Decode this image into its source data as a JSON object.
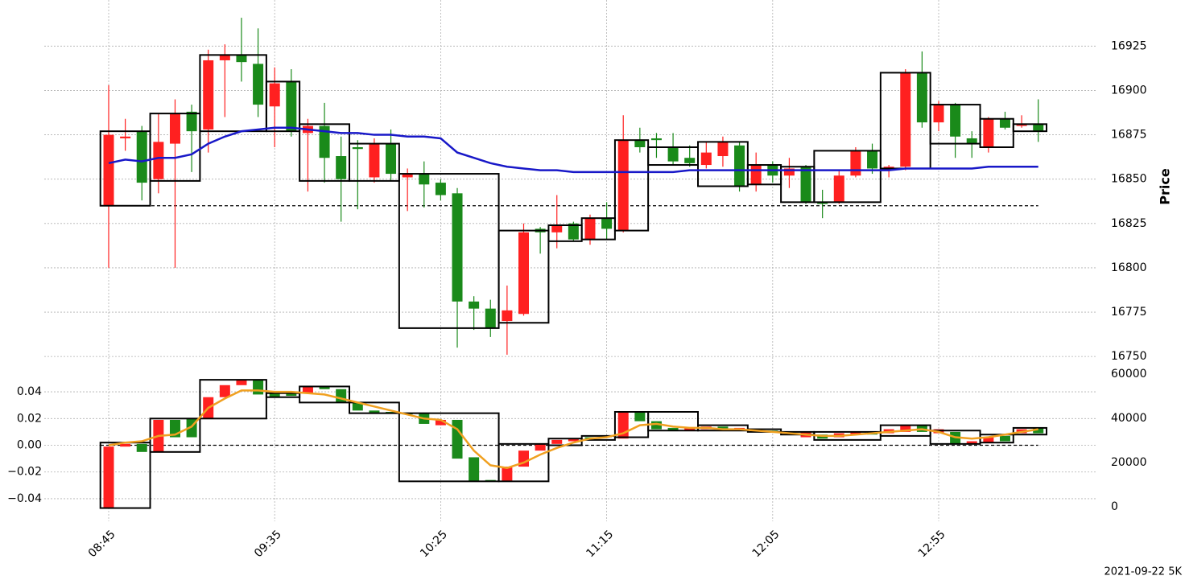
{
  "chart_data": [
    {
      "type": "candlestick",
      "ylabel": "Price",
      "y_axis_side": "right",
      "grid": true,
      "up_color": "#1a8a1a",
      "down_color": "#ff2020",
      "ylim": [
        16741,
        16951
      ],
      "yticks": [
        16750,
        16775,
        16800,
        16825,
        16850,
        16875,
        16900,
        16925
      ],
      "open": [
        16875,
        16874,
        16848,
        16871,
        16887,
        16877,
        16917,
        16920,
        16916,
        16892,
        16904,
        16877,
        16880,
        16862,
        16850,
        16867,
        16870,
        16853,
        16853,
        16847,
        16841,
        16781,
        16777,
        16766,
        16776,
        16820,
        16820,
        16824,
        16816,
        16828,
        16822,
        16872,
        16868,
        16872,
        16860,
        16859,
        16865,
        16871,
        16846,
        16858,
        16852,
        16856,
        16837,
        16836,
        16852,
        16866,
        16856,
        16857,
        16910,
        16882,
        16892,
        16874,
        16870,
        16884,
        16879,
        16881,
        16877
      ],
      "high": [
        16903,
        16884,
        16880,
        16887,
        16895,
        16892,
        16923,
        16926,
        16941,
        16935,
        16913,
        16912,
        16884,
        16893,
        16874,
        16872,
        16873,
        16878,
        16856,
        16860,
        16850,
        16845,
        16784,
        16782,
        16790,
        16825,
        16823,
        16841,
        16826,
        16830,
        16837,
        16886,
        16879,
        16876,
        16876,
        16869,
        16871,
        16874,
        16871,
        16865,
        16860,
        16862,
        16858,
        16844,
        16855,
        16868,
        16870,
        16858,
        16912,
        16922,
        16894,
        16893,
        16877,
        16885,
        16888,
        16886,
        16895
      ],
      "low": [
        16800,
        16866,
        16838,
        16842,
        16800,
        16854,
        16865,
        16885,
        16905,
        16885,
        16868,
        16874,
        16843,
        16848,
        16826,
        16833,
        16848,
        16849,
        16832,
        16834,
        16838,
        16755,
        16765,
        16761,
        16751,
        16773,
        16808,
        16811,
        16815,
        16813,
        16816,
        16820,
        16865,
        16862,
        16858,
        16857,
        16856,
        16857,
        16843,
        16843,
        16848,
        16845,
        16836,
        16828,
        16836,
        16851,
        16853,
        16851,
        16855,
        16879,
        16877,
        16862,
        16862,
        16865,
        16878,
        16879,
        16871
      ],
      "close": [
        16835,
        16873,
        16877,
        16850,
        16870,
        16888,
        16878,
        16917,
        16920,
        16915,
        16891,
        16905,
        16876,
        16880,
        16863,
        16868,
        16851,
        16870,
        16851,
        16853,
        16848,
        16842,
        16781,
        16777,
        16770,
        16774,
        16822,
        16820,
        16825,
        16816,
        16828,
        16821,
        16872,
        16873,
        16868,
        16862,
        16858,
        16863,
        16869,
        16847,
        16858,
        16852,
        16857,
        16837,
        16837,
        16852,
        16866,
        16855,
        16857,
        16910,
        16882,
        16892,
        16873,
        16868,
        16884,
        16880,
        16881
      ],
      "boxes": [
        {
          "start": 0,
          "end": 2,
          "high": 16877,
          "low": 16835
        },
        {
          "start": 3,
          "end": 5,
          "high": 16887,
          "low": 16849
        },
        {
          "start": 6,
          "end": 9,
          "high": 16920,
          "low": 16877
        },
        {
          "start": 10,
          "end": 11,
          "high": 16905,
          "low": 16877
        },
        {
          "start": 12,
          "end": 14,
          "high": 16881,
          "low": 16849
        },
        {
          "start": 15,
          "end": 17,
          "high": 16870,
          "low": 16849
        },
        {
          "start": 18,
          "end": 23,
          "high": 16853,
          "low": 16766
        },
        {
          "start": 24,
          "end": 26,
          "high": 16821,
          "low": 16769
        },
        {
          "start": 27,
          "end": 28,
          "high": 16824,
          "low": 16815
        },
        {
          "start": 29,
          "end": 30,
          "high": 16828,
          "low": 16816
        },
        {
          "start": 31,
          "end": 32,
          "high": 16872,
          "low": 16821
        },
        {
          "start": 33,
          "end": 35,
          "high": 16868,
          "low": 16858
        },
        {
          "start": 36,
          "end": 38,
          "high": 16871,
          "low": 16846
        },
        {
          "start": 39,
          "end": 40,
          "high": 16858,
          "low": 16847
        },
        {
          "start": 41,
          "end": 42,
          "high": 16857,
          "low": 16837
        },
        {
          "start": 43,
          "end": 46,
          "high": 16866,
          "low": 16837
        },
        {
          "start": 47,
          "end": 49,
          "high": 16910,
          "low": 16856
        },
        {
          "start": 50,
          "end": 52,
          "high": 16892,
          "low": 16870
        },
        {
          "start": 53,
          "end": 54,
          "high": 16884,
          "low": 16868
        },
        {
          "start": 55,
          "end": 56,
          "high": 16881,
          "low": 16877
        }
      ],
      "line": {
        "color": "#1818c8",
        "values": [
          16859,
          16861,
          16860,
          16862,
          16862,
          16864,
          16870,
          16874,
          16877,
          16878,
          16879,
          16879,
          16878,
          16877,
          16876,
          16876,
          16875,
          16875,
          16874,
          16874,
          16873,
          16865,
          16862,
          16859,
          16857,
          16856,
          16855,
          16855,
          16854,
          16854,
          16854,
          16854,
          16854,
          16854,
          16854,
          16855,
          16855,
          16855,
          16855,
          16855,
          16855,
          16855,
          16855,
          16855,
          16855,
          16855,
          16855,
          16855,
          16856,
          16856,
          16856,
          16856,
          16856,
          16857,
          16857,
          16857,
          16857
        ]
      },
      "hline": 16835
    },
    {
      "type": "candlestick",
      "y_axis_side": "left",
      "grid": true,
      "up_color": "#1a8a1a",
      "down_color": "#ff2020",
      "categories": [
        "08:45",
        null,
        null,
        null,
        null,
        null,
        null,
        null,
        null,
        null,
        "09:35",
        null,
        null,
        null,
        null,
        null,
        null,
        null,
        null,
        null,
        "10:25",
        null,
        null,
        null,
        null,
        null,
        null,
        null,
        null,
        null,
        "11:15",
        null,
        null,
        null,
        null,
        null,
        null,
        null,
        null,
        null,
        "12:05",
        null,
        null,
        null,
        null,
        null,
        null,
        null,
        null,
        null,
        "12:55",
        null,
        null,
        null,
        null,
        null,
        null
      ],
      "ylim": [
        -0.0569,
        0.0545
      ],
      "yticks": [
        {
          "value": -0.04,
          "label": "−0.04"
        },
        {
          "value": -0.02,
          "label": "−0.02"
        },
        {
          "value": 0,
          "label": "0.00"
        },
        0.02,
        0.04
      ],
      "y2lim": [
        -6545,
        60727
      ],
      "y2ticks": [
        0,
        20000,
        40000,
        60000
      ],
      "open": [
        -0.001,
        0.001,
        -0.005,
        0.019,
        0.006,
        0.006,
        0.036,
        0.045,
        0.049,
        0.038,
        0.036,
        0.037,
        0.044,
        0.042,
        0.032,
        0.026,
        0.024,
        0.024,
        0.024,
        0.016,
        0.019,
        -0.01,
        -0.027,
        -0.027,
        -0.016,
        -0.004,
        0.001,
        0.004,
        0.005,
        0.005,
        0.006,
        0.025,
        0.018,
        0.012,
        0.011,
        0.013,
        0.014,
        0.012,
        0.013,
        0.011,
        0.01,
        0.009,
        0.01,
        0.005,
        0.009,
        0.01,
        0.008,
        0.012,
        0.015,
        0.01,
        0.012,
        0.001,
        0.003,
        0.006,
        0.003,
        0.012,
        0.009
      ],
      "close": [
        -0.047,
        -0.001,
        0.001,
        -0.005,
        0.019,
        0.02,
        0.02,
        0.036,
        0.045,
        0.049,
        0.039,
        0.039,
        0.039,
        0.044,
        0.042,
        0.032,
        0.026,
        0.025,
        0.024,
        0.024,
        0.015,
        0.019,
        -0.009,
        -0.026,
        -0.027,
        -0.016,
        -0.004,
        0.001,
        0.003,
        0.006,
        0.007,
        0.005,
        0.025,
        0.018,
        0.013,
        0.011,
        0.012,
        0.014,
        0.011,
        0.012,
        0.011,
        0.01,
        0.006,
        0.008,
        0.006,
        0.008,
        0.01,
        0.009,
        0.01,
        0.015,
        0.009,
        0.01,
        0.001,
        0.002,
        0.007,
        0.009,
        0.013
      ],
      "boxes": [
        {
          "start": 0,
          "end": 2,
          "high": 0.002,
          "low": -0.047
        },
        {
          "start": 3,
          "end": 5,
          "high": 0.02,
          "low": -0.005
        },
        {
          "start": 6,
          "end": 9,
          "high": 0.049,
          "low": 0.02
        },
        {
          "start": 10,
          "end": 11,
          "high": 0.039,
          "low": 0.036
        },
        {
          "start": 12,
          "end": 14,
          "high": 0.044,
          "low": 0.032
        },
        {
          "start": 15,
          "end": 17,
          "high": 0.032,
          "low": 0.024
        },
        {
          "start": 18,
          "end": 23,
          "high": 0.024,
          "low": -0.027
        },
        {
          "start": 24,
          "end": 26,
          "high": 0.001,
          "low": -0.027
        },
        {
          "start": 27,
          "end": 28,
          "high": 0.005,
          "low": 0.0
        },
        {
          "start": 29,
          "end": 30,
          "high": 0.007,
          "low": 0.004
        },
        {
          "start": 31,
          "end": 32,
          "high": 0.025,
          "low": 0.006
        },
        {
          "start": 33,
          "end": 35,
          "high": 0.025,
          "low": 0.011
        },
        {
          "start": 36,
          "end": 38,
          "high": 0.015,
          "low": 0.011
        },
        {
          "start": 39,
          "end": 40,
          "high": 0.012,
          "low": 0.01
        },
        {
          "start": 41,
          "end": 42,
          "high": 0.01,
          "low": 0.008
        },
        {
          "start": 43,
          "end": 46,
          "high": 0.01,
          "low": 0.004
        },
        {
          "start": 47,
          "end": 49,
          "high": 0.015,
          "low": 0.007
        },
        {
          "start": 50,
          "end": 52,
          "high": 0.011,
          "low": 0.001
        },
        {
          "start": 53,
          "end": 54,
          "high": 0.008,
          "low": 0.002
        },
        {
          "start": 55,
          "end": 56,
          "high": 0.013,
          "low": 0.008
        }
      ],
      "line": {
        "color": "#f0a020",
        "values": [
          0.0,
          0.002,
          0.003,
          0.007,
          0.008,
          0.014,
          0.028,
          0.035,
          0.041,
          0.041,
          0.04,
          0.04,
          0.039,
          0.038,
          0.035,
          0.032,
          0.029,
          0.026,
          0.023,
          0.02,
          0.019,
          0.012,
          -0.004,
          -0.015,
          -0.017,
          -0.013,
          -0.007,
          -0.002,
          0.002,
          0.005,
          0.006,
          0.009,
          0.015,
          0.016,
          0.014,
          0.013,
          0.013,
          0.012,
          0.012,
          0.011,
          0.01,
          0.009,
          0.008,
          0.007,
          0.007,
          0.008,
          0.009,
          0.01,
          0.011,
          0.012,
          0.01,
          0.006,
          0.005,
          0.006,
          0.008,
          0.01,
          0.012
        ]
      },
      "hline": 0
    }
  ],
  "footer": "2021-09-22 5K"
}
